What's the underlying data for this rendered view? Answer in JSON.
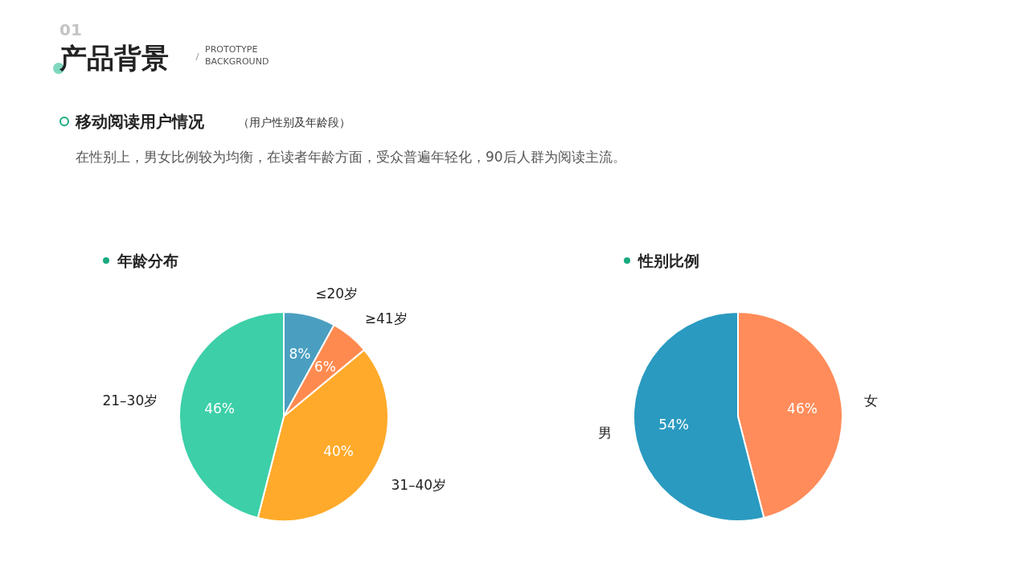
{
  "chart_data": [
    {
      "type": "other",
      "title": "产品背景",
      "subtitle": "PROTOTYPE BACKGROUND",
      "annotations": [
        "01",
        "移动阅读用户情况",
        "（用户性别及年龄段）",
        "在性别上，男女比例较为均衡，在读者年龄方面，受众普遍年轻化，90后人群为阅读主流。"
      ]
    },
    {
      "type": "pie",
      "title": "年龄分布",
      "categories": [
        "≤20岁",
        "≥41岁",
        "31–40岁",
        "21–30岁"
      ],
      "values": [
        8,
        6,
        40,
        46
      ],
      "value_labels": [
        "8%",
        "6%",
        "40%",
        "46%"
      ],
      "colors": [
        "#4a9fc0",
        "#ff8a50",
        "#ffaa2a",
        "#3ccfa8"
      ]
    },
    {
      "type": "pie",
      "title": "性别比例",
      "categories": [
        "女",
        "男"
      ],
      "values": [
        46,
        54
      ],
      "value_labels": [
        "46%",
        "54%"
      ],
      "colors": [
        "#ff8c5a",
        "#2a9ac0"
      ]
    }
  ]
}
